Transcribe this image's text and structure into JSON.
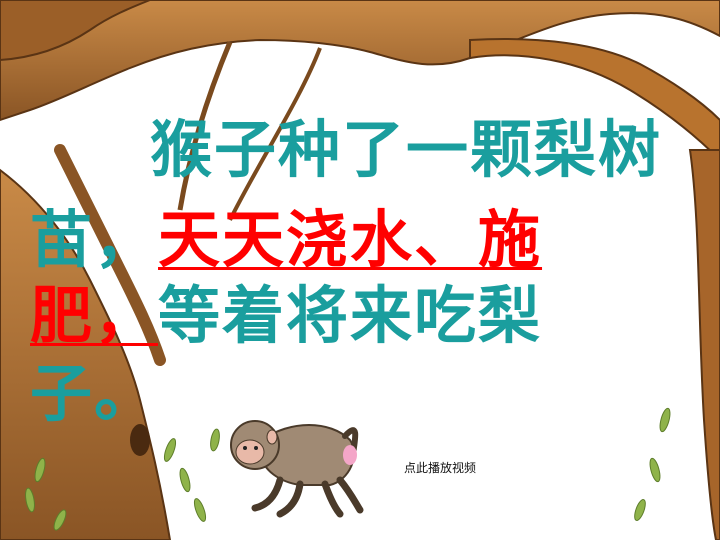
{
  "story": {
    "line1": "猴子种了一颗梨树",
    "line2_start": "苗，",
    "line2_highlight": "天天浇水、施",
    "line3_highlight": "肥，",
    "line3_rest": "等着将来吃梨",
    "line4": "子。"
  },
  "video_link": "点此播放视频",
  "colors": {
    "text_teal": "#1a9e9e",
    "highlight_red": "#ff0000",
    "bark": "#b8732e",
    "bark_dark": "#6e4019",
    "leaf": "#8fb34a",
    "monkey_fur": "#a08a74",
    "monkey_face": "#e8b9a8"
  }
}
